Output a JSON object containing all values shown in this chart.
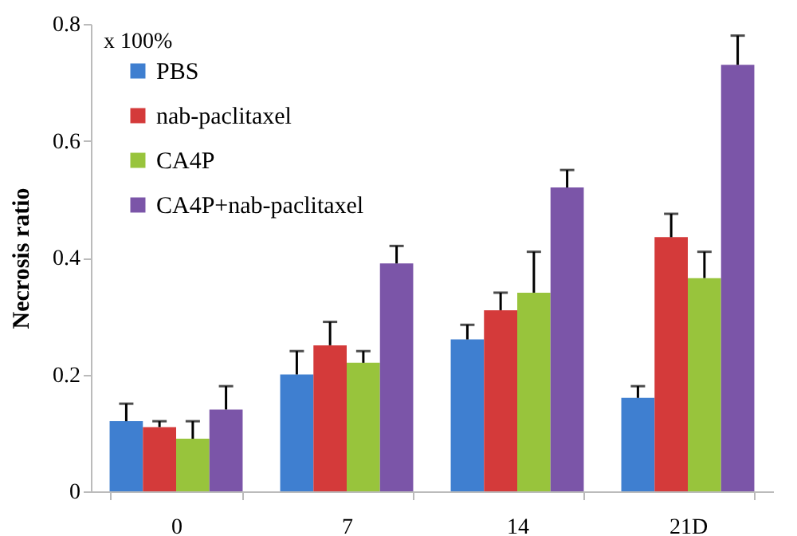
{
  "chart_data": {
    "type": "bar",
    "ylabel": "Necrosis ratio",
    "annotations": [
      "x 100%"
    ],
    "categories": [
      "0",
      "7",
      "14",
      "21D"
    ],
    "series": [
      {
        "name": "PBS",
        "color": "#3f7fd0",
        "values": [
          0.12,
          0.2,
          0.26,
          0.16
        ],
        "errors": [
          [
            0.12,
            0.15
          ],
          [
            0.2,
            0.24
          ],
          [
            0.26,
            0.285
          ],
          [
            0.16,
            0.18
          ]
        ]
      },
      {
        "name": "nab-paclitaxel",
        "color": "#d43a3a",
        "values": [
          0.11,
          0.25,
          0.31,
          0.435
        ],
        "errors": [
          [
            0.11,
            0.12
          ],
          [
            0.25,
            0.29
          ],
          [
            0.31,
            0.34
          ],
          [
            0.435,
            0.475
          ]
        ]
      },
      {
        "name": "CA4P",
        "color": "#98c43c",
        "values": [
          0.09,
          0.22,
          0.34,
          0.365
        ],
        "errors": [
          [
            0.09,
            0.12
          ],
          [
            0.22,
            0.24
          ],
          [
            0.34,
            0.41
          ],
          [
            0.365,
            0.41
          ]
        ]
      },
      {
        "name": "CA4P+nab-paclitaxel",
        "color": "#7b55a8",
        "values": [
          0.14,
          0.39,
          0.52,
          0.73
        ],
        "errors": [
          [
            0.14,
            0.18
          ],
          [
            0.39,
            0.42
          ],
          [
            0.52,
            0.55
          ],
          [
            0.73,
            0.78
          ]
        ]
      }
    ],
    "ylim": [
      0,
      0.8
    ],
    "yticks": [
      0,
      0.2,
      0.4,
      0.6,
      0.8
    ],
    "grid": false,
    "legend": "top left"
  }
}
